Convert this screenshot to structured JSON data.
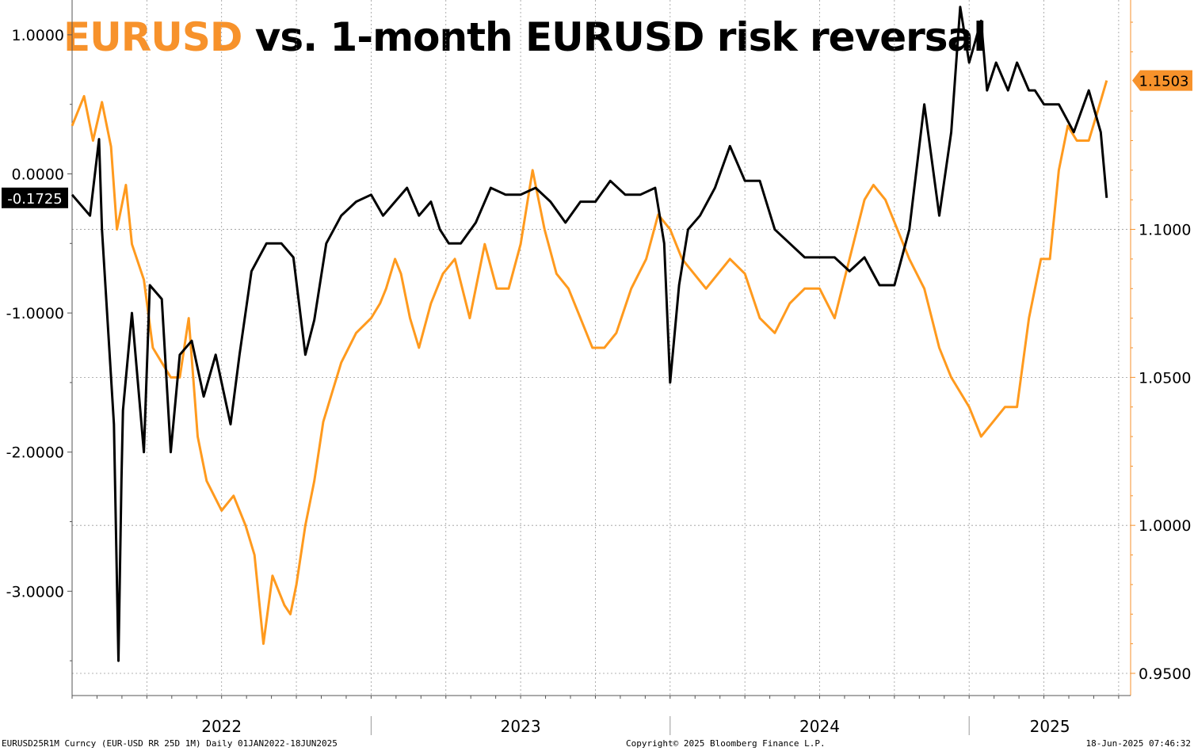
{
  "title": {
    "highlight": "EURUSD",
    "rest": " vs. 1-month EURUSD risk reversal",
    "highlight_color": "#f7922b"
  },
  "footer": {
    "left": "EURUSD25R1M Curncy (EUR-USD RR 25D 1M)  Daily 01JAN2022-18JUN2025",
    "center": "Copyright© 2025 Bloomberg Finance L.P.",
    "right": "18-Jun-2025 07:46:32"
  },
  "chart_data": {
    "type": "line",
    "x_range": [
      "2022-01-01",
      "2025-06-18"
    ],
    "x_tick_labels": [
      "2022",
      "2023",
      "2024",
      "2025"
    ],
    "left_axis": {
      "tick_labels": [
        "1.0000",
        "0.0000",
        "-1.0000",
        "-2.0000",
        "-3.0000"
      ],
      "ticks": [
        1,
        0,
        -1,
        -2,
        -3
      ],
      "range": [
        -3.75,
        1.25
      ],
      "last_value_label": "-0.1725",
      "last_value": -0.1725
    },
    "right_axis": {
      "tick_labels": [
        "1.1000",
        "1.0500",
        "1.0000",
        "0.9500"
      ],
      "ticks": [
        1.1,
        1.05,
        1.0,
        0.95
      ],
      "range": [
        0.9425,
        1.1775
      ],
      "last_value_label": "1.1503",
      "last_value": 1.1503
    },
    "series": [
      {
        "name": "EURUSD25R1M Curncy (EUR-USD RR 25D 1M)",
        "axis": "left",
        "color": "#000000",
        "x": [
          2022.0,
          2022.06,
          2022.09,
          2022.1,
          2022.14,
          2022.155,
          2022.165,
          2022.17,
          2022.2,
          2022.24,
          2022.26,
          2022.3,
          2022.33,
          2022.36,
          2022.4,
          2022.44,
          2022.48,
          2022.5,
          2022.53,
          2022.56,
          2022.6,
          2022.65,
          2022.7,
          2022.74,
          2022.78,
          2022.81,
          2022.85,
          2022.9,
          2022.95,
          2023.0,
          2023.04,
          2023.08,
          2023.12,
          2023.16,
          2023.2,
          2023.23,
          2023.26,
          2023.3,
          2023.35,
          2023.4,
          2023.45,
          2023.5,
          2023.55,
          2023.6,
          2023.65,
          2023.7,
          2023.75,
          2023.8,
          2023.85,
          2023.9,
          2023.95,
          2023.98,
          2024.0,
          2024.03,
          2024.06,
          2024.1,
          2024.15,
          2024.2,
          2024.25,
          2024.3,
          2024.35,
          2024.4,
          2024.45,
          2024.5,
          2024.55,
          2024.6,
          2024.65,
          2024.7,
          2024.75,
          2024.8,
          2024.85,
          2024.9,
          2024.94,
          2024.97,
          2025.0,
          2025.04,
          2025.06,
          2025.09,
          2025.13,
          2025.16,
          2025.2,
          2025.22,
          2025.25,
          2025.3,
          2025.35,
          2025.4,
          2025.44,
          2025.46
        ],
        "values": [
          -0.15,
          -0.3,
          0.25,
          -0.4,
          -1.8,
          -3.5,
          -2.2,
          -1.7,
          -1.0,
          -2.0,
          -0.8,
          -0.9,
          -2.0,
          -1.3,
          -1.2,
          -1.6,
          -1.3,
          -1.5,
          -1.8,
          -1.3,
          -0.7,
          -0.5,
          -0.5,
          -0.6,
          -1.3,
          -1.05,
          -0.5,
          -0.3,
          -0.2,
          -0.15,
          -0.3,
          -0.2,
          -0.1,
          -0.3,
          -0.2,
          -0.4,
          -0.5,
          -0.5,
          -0.35,
          -0.1,
          -0.15,
          -0.15,
          -0.1,
          -0.2,
          -0.35,
          -0.2,
          -0.2,
          -0.05,
          -0.15,
          -0.15,
          -0.1,
          -0.5,
          -1.5,
          -0.8,
          -0.4,
          -0.3,
          -0.1,
          0.2,
          -0.05,
          -0.05,
          -0.4,
          -0.5,
          -0.6,
          -0.6,
          -0.6,
          -0.7,
          -0.6,
          -0.8,
          -0.8,
          -0.4,
          0.5,
          -0.3,
          0.3,
          1.2,
          0.8,
          1.1,
          0.6,
          0.8,
          0.6,
          0.8,
          0.6,
          0.6,
          0.5,
          0.5,
          0.3,
          0.6,
          0.3,
          -0.1725
        ]
      },
      {
        "name": "EURUSD Curncy",
        "axis": "right",
        "color": "#ff9a1e",
        "x": [
          2022.0,
          2022.04,
          2022.07,
          2022.1,
          2022.13,
          2022.15,
          2022.18,
          2022.2,
          2022.24,
          2022.27,
          2022.3,
          2022.33,
          2022.36,
          2022.39,
          2022.42,
          2022.45,
          2022.5,
          2022.54,
          2022.58,
          2022.61,
          2022.64,
          2022.67,
          2022.71,
          2022.73,
          2022.75,
          2022.78,
          2022.81,
          2022.84,
          2022.87,
          2022.9,
          2022.95,
          2023.0,
          2023.03,
          2023.05,
          2023.08,
          2023.1,
          2023.13,
          2023.16,
          2023.2,
          2023.24,
          2023.28,
          2023.33,
          2023.38,
          2023.42,
          2023.46,
          2023.5,
          2023.54,
          2023.58,
          2023.62,
          2023.66,
          2023.7,
          2023.74,
          2023.78,
          2023.82,
          2023.87,
          2023.92,
          2023.96,
          2024.0,
          2024.04,
          2024.08,
          2024.12,
          2024.16,
          2024.2,
          2024.25,
          2024.3,
          2024.35,
          2024.4,
          2024.45,
          2024.5,
          2024.55,
          2024.6,
          2024.65,
          2024.68,
          2024.72,
          2024.76,
          2024.8,
          2024.85,
          2024.9,
          2024.94,
          2024.97,
          2025.0,
          2025.04,
          2025.08,
          2025.12,
          2025.16,
          2025.2,
          2025.24,
          2025.27,
          2025.3,
          2025.33,
          2025.36,
          2025.4,
          2025.43,
          2025.46
        ],
        "values": [
          1.135,
          1.145,
          1.13,
          1.143,
          1.128,
          1.1,
          1.115,
          1.095,
          1.083,
          1.06,
          1.055,
          1.05,
          1.05,
          1.07,
          1.03,
          1.015,
          1.005,
          1.01,
          1.0,
          0.99,
          0.96,
          0.983,
          0.973,
          0.97,
          0.98,
          1.0,
          1.015,
          1.035,
          1.045,
          1.055,
          1.065,
          1.07,
          1.075,
          1.08,
          1.09,
          1.085,
          1.07,
          1.06,
          1.075,
          1.085,
          1.09,
          1.07,
          1.095,
          1.08,
          1.08,
          1.095,
          1.12,
          1.1,
          1.085,
          1.08,
          1.07,
          1.06,
          1.06,
          1.065,
          1.08,
          1.09,
          1.105,
          1.1,
          1.09,
          1.085,
          1.08,
          1.085,
          1.09,
          1.085,
          1.07,
          1.065,
          1.075,
          1.08,
          1.08,
          1.07,
          1.09,
          1.11,
          1.115,
          1.11,
          1.1,
          1.09,
          1.08,
          1.06,
          1.05,
          1.045,
          1.04,
          1.03,
          1.035,
          1.04,
          1.04,
          1.07,
          1.09,
          1.09,
          1.12,
          1.135,
          1.13,
          1.13,
          1.14,
          1.1503
        ]
      }
    ],
    "grid": true
  }
}
